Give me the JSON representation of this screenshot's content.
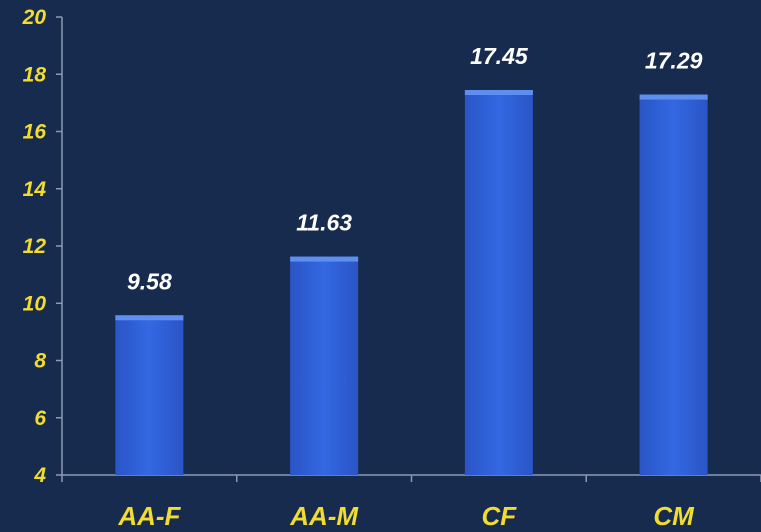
{
  "chart_data": {
    "type": "bar",
    "categories": [
      "AA-F",
      "AA-M",
      "CF",
      "CM"
    ],
    "values": [
      9.58,
      11.63,
      17.45,
      17.29
    ],
    "data_labels": [
      "9.58",
      "11.63",
      "17.45",
      "17.29"
    ],
    "ylim": [
      4,
      20
    ],
    "yticks": [
      "4",
      "6",
      "8",
      "10",
      "12",
      "14",
      "16",
      "18",
      "20"
    ],
    "grid": false,
    "legend": "none"
  },
  "colors": {
    "background": "#172b4e",
    "bar": "#2f62d9",
    "bar_top": "#5e8ff0",
    "ytick_text": "#f2dc2f",
    "xtick_text": "#f2dc2f",
    "data_label_text": "#ffffff",
    "axis": "#8c9bb5"
  }
}
